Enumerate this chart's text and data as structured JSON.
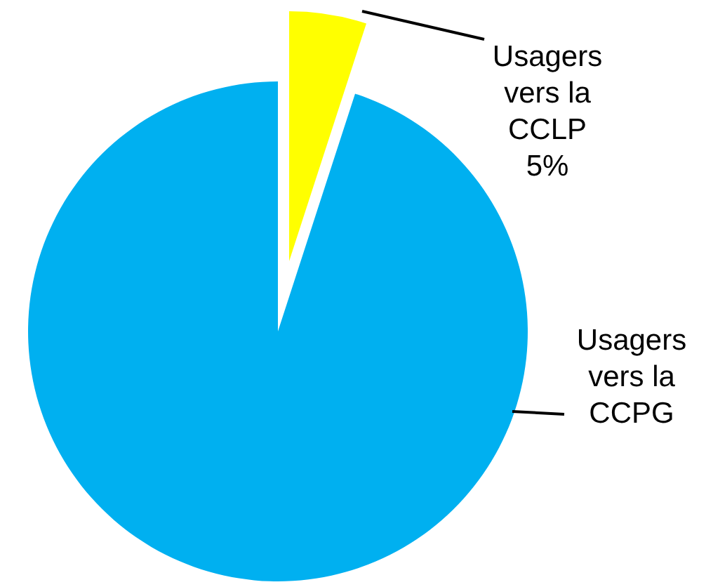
{
  "chart_data": {
    "type": "pie",
    "categories": [
      "Usagers vers la CCLP",
      "Usagers vers la CCPG"
    ],
    "values": [
      5,
      95
    ],
    "colors": [
      "#ffff00",
      "#00b0f0"
    ],
    "value_labels": [
      "5%",
      null
    ]
  }
}
